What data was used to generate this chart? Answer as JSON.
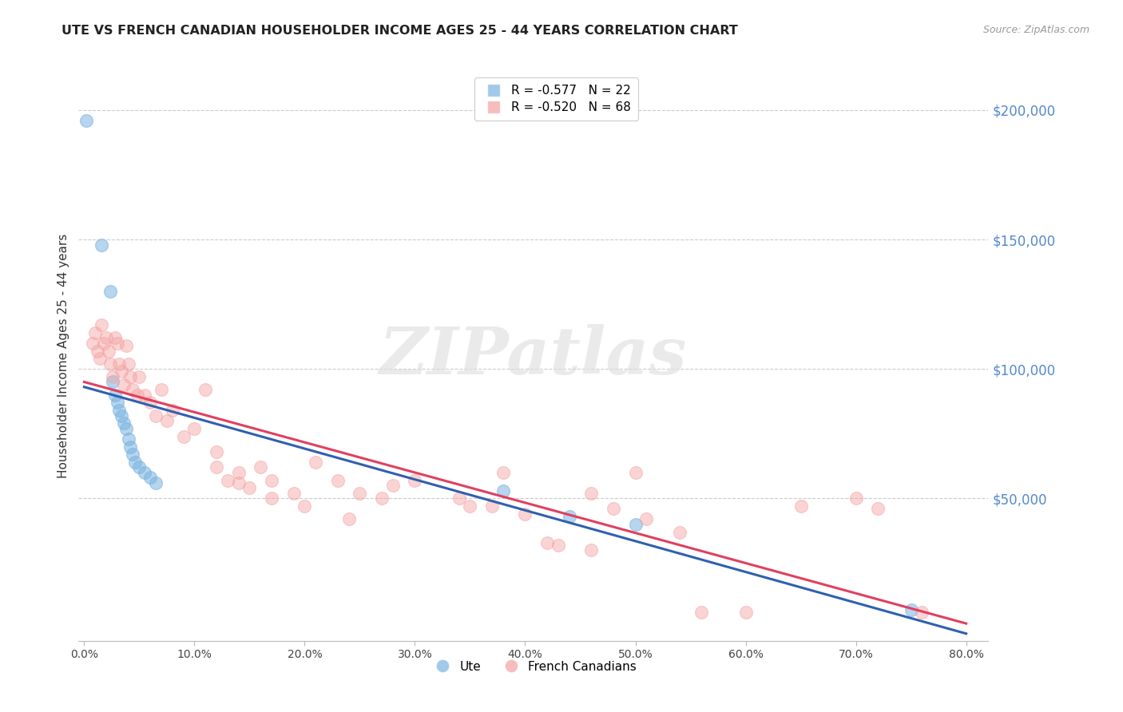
{
  "title": "UTE VS FRENCH CANADIAN HOUSEHOLDER INCOME AGES 25 - 44 YEARS CORRELATION CHART",
  "source": "Source: ZipAtlas.com",
  "ylabel": "Householder Income Ages 25 - 44 years",
  "ytick_labels": [
    "$50,000",
    "$100,000",
    "$150,000",
    "$200,000"
  ],
  "ytick_values": [
    50000,
    100000,
    150000,
    200000
  ],
  "ylim": [
    -5000,
    215000
  ],
  "xlim": [
    -0.005,
    0.82
  ],
  "ute_color": "#7ab3e0",
  "fc_color": "#f4a0a0",
  "trend_ute_color": "#3060b0",
  "trend_fc_color": "#e04060",
  "watermark": "ZIPatlas",
  "background_color": "#ffffff",
  "grid_color": "#cccccc",
  "ute_x": [
    0.002,
    0.016,
    0.024,
    0.026,
    0.028,
    0.03,
    0.032,
    0.034,
    0.036,
    0.038,
    0.04,
    0.042,
    0.044,
    0.046,
    0.05,
    0.055,
    0.06,
    0.065,
    0.38,
    0.44,
    0.5,
    0.75
  ],
  "ute_y": [
    196000,
    148000,
    130000,
    95000,
    90000,
    87000,
    84000,
    82000,
    79000,
    77000,
    73000,
    70000,
    67000,
    64000,
    62000,
    60000,
    58000,
    56000,
    53000,
    43000,
    40000,
    7000
  ],
  "fc_x": [
    0.008,
    0.01,
    0.012,
    0.014,
    0.016,
    0.018,
    0.02,
    0.022,
    0.024,
    0.026,
    0.028,
    0.03,
    0.032,
    0.034,
    0.036,
    0.038,
    0.04,
    0.042,
    0.044,
    0.048,
    0.05,
    0.055,
    0.06,
    0.065,
    0.07,
    0.075,
    0.08,
    0.09,
    0.1,
    0.11,
    0.12,
    0.13,
    0.14,
    0.15,
    0.16,
    0.17,
    0.19,
    0.21,
    0.23,
    0.25,
    0.27,
    0.3,
    0.34,
    0.37,
    0.4,
    0.43,
    0.46,
    0.48,
    0.51,
    0.54,
    0.38,
    0.12,
    0.14,
    0.17,
    0.2,
    0.24,
    0.28,
    0.35,
    0.42,
    0.46,
    0.5,
    0.56,
    0.6,
    0.65,
    0.7,
    0.72,
    0.76
  ],
  "fc_y": [
    110000,
    114000,
    107000,
    104000,
    117000,
    110000,
    112000,
    107000,
    102000,
    97000,
    112000,
    110000,
    102000,
    99000,
    94000,
    109000,
    102000,
    97000,
    92000,
    90000,
    97000,
    90000,
    87000,
    82000,
    92000,
    80000,
    84000,
    74000,
    77000,
    92000,
    62000,
    57000,
    60000,
    54000,
    62000,
    57000,
    52000,
    64000,
    57000,
    52000,
    50000,
    57000,
    50000,
    47000,
    44000,
    32000,
    52000,
    46000,
    42000,
    37000,
    60000,
    68000,
    56000,
    50000,
    47000,
    42000,
    55000,
    47000,
    33000,
    30000,
    60000,
    6000,
    6000,
    47000,
    50000,
    46000,
    6000
  ]
}
